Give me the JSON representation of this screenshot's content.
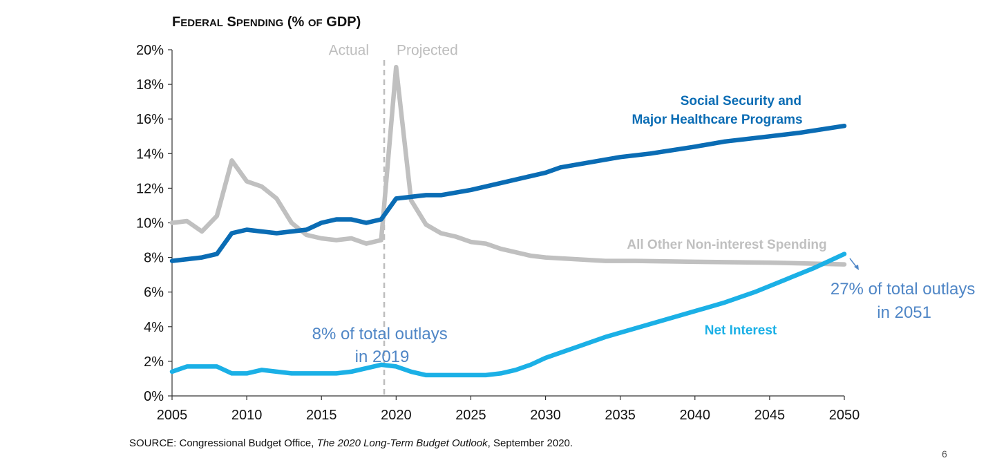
{
  "page_number": "6",
  "source_note": {
    "prefix": "SOURCE: Congressional Budget Office, ",
    "italic": "The 2020 Long-Term Budget Outlook",
    "suffix": ", September 2020."
  },
  "chart_data": {
    "type": "line",
    "title": "Federal Spending (% of GDP)",
    "ylim": [
      0,
      20
    ],
    "xlim": [
      2005,
      2050
    ],
    "yticks": [
      0,
      2,
      4,
      6,
      8,
      10,
      12,
      14,
      16,
      18,
      20
    ],
    "ytick_labels": [
      "0%",
      "2%",
      "4%",
      "6%",
      "8%",
      "10%",
      "12%",
      "14%",
      "16%",
      "18%",
      "20%"
    ],
    "xticks": [
      2005,
      2010,
      2015,
      2020,
      2025,
      2030,
      2035,
      2040,
      2045,
      2050
    ],
    "xtick_labels": [
      "2005",
      "2010",
      "2015",
      "2020",
      "2025",
      "2030",
      "2035",
      "2040",
      "2045",
      "2050"
    ],
    "divider": {
      "x": 2019.2,
      "left_label": "Actual",
      "right_label": "Projected"
    },
    "series": [
      {
        "name": "All Other Non-interest Spending",
        "color": "#c0c0c0",
        "x": [
          2005,
          2006,
          2007,
          2008,
          2009,
          2010,
          2011,
          2012,
          2013,
          2014,
          2015,
          2016,
          2017,
          2018,
          2019,
          2020,
          2021,
          2022,
          2023,
          2024,
          2025,
          2026,
          2027,
          2028,
          2029,
          2030,
          2032,
          2034,
          2036,
          2040,
          2045,
          2050
        ],
        "values": [
          10.0,
          10.1,
          9.5,
          10.4,
          13.6,
          12.4,
          12.1,
          11.4,
          10.0,
          9.3,
          9.1,
          9.0,
          9.1,
          8.8,
          9.0,
          19.0,
          11.3,
          9.9,
          9.4,
          9.2,
          8.9,
          8.8,
          8.5,
          8.3,
          8.1,
          8.0,
          7.9,
          7.8,
          7.8,
          7.75,
          7.7,
          7.6
        ]
      },
      {
        "name": "Social Security and Major Healthcare Programs",
        "color": "#0a6cb4",
        "x": [
          2005,
          2006,
          2007,
          2008,
          2009,
          2010,
          2011,
          2012,
          2013,
          2014,
          2015,
          2016,
          2017,
          2018,
          2019,
          2020,
          2021,
          2022,
          2023,
          2025,
          2027,
          2029,
          2030,
          2031,
          2033,
          2035,
          2037,
          2040,
          2042,
          2045,
          2047,
          2050
        ],
        "values": [
          7.8,
          7.9,
          8.0,
          8.2,
          9.4,
          9.6,
          9.5,
          9.4,
          9.5,
          9.6,
          10.0,
          10.2,
          10.2,
          10.0,
          10.2,
          11.4,
          11.5,
          11.6,
          11.6,
          11.9,
          12.3,
          12.7,
          12.9,
          13.2,
          13.5,
          13.8,
          14.0,
          14.4,
          14.7,
          15.0,
          15.2,
          15.6
        ]
      },
      {
        "name": "Net Interest",
        "color": "#1bb0e6",
        "x": [
          2005,
          2006,
          2007,
          2008,
          2009,
          2010,
          2011,
          2012,
          2013,
          2014,
          2015,
          2016,
          2017,
          2018,
          2019,
          2020,
          2021,
          2022,
          2023,
          2024,
          2025,
          2026,
          2027,
          2028,
          2029,
          2030,
          2032,
          2034,
          2036,
          2038,
          2040,
          2042,
          2044,
          2046,
          2048,
          2050
        ],
        "values": [
          1.4,
          1.7,
          1.7,
          1.7,
          1.3,
          1.3,
          1.5,
          1.4,
          1.3,
          1.3,
          1.3,
          1.3,
          1.4,
          1.6,
          1.8,
          1.7,
          1.4,
          1.2,
          1.2,
          1.2,
          1.2,
          1.2,
          1.3,
          1.5,
          1.8,
          2.2,
          2.8,
          3.4,
          3.9,
          4.4,
          4.9,
          5.4,
          6.0,
          6.7,
          7.4,
          8.2
        ]
      }
    ],
    "series_labels": [
      {
        "lines": [
          "Social Security and",
          "Major Healthcare Programs"
        ],
        "color": "#0a6cb4"
      },
      {
        "lines": [
          "All Other Non-interest Spending"
        ],
        "color": "#c0c0c0"
      },
      {
        "lines": [
          "Net Interest"
        ],
        "color": "#1bb0e6"
      }
    ],
    "annotations": [
      {
        "lines": [
          "8% of total outlays",
          "in 2019"
        ]
      },
      {
        "lines": [
          "27% of total outlays",
          "in 2051"
        ]
      }
    ]
  }
}
